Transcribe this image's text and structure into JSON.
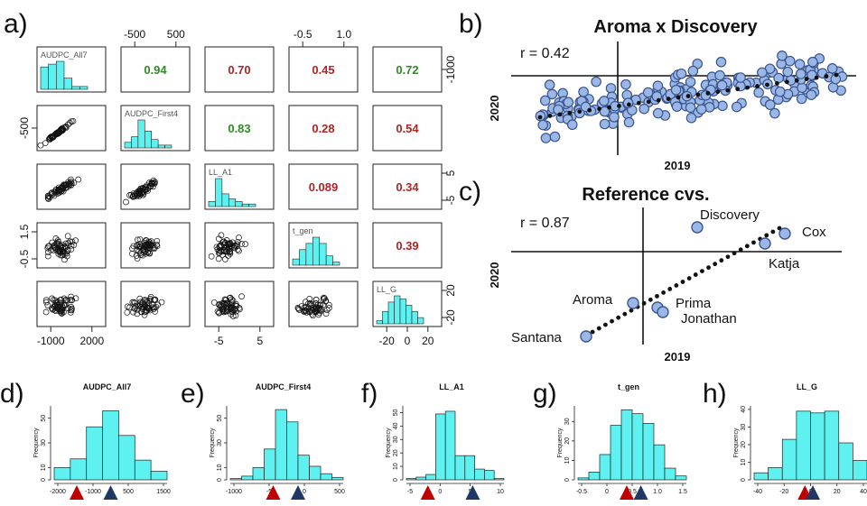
{
  "colors": {
    "hist_fill": "#5ff0f0",
    "green": "#2e8b22",
    "red": "#b22222",
    "point_fill": "#9ab7e6",
    "point_stroke": "#3a5590",
    "tri_red": "#c00000",
    "tri_blue": "#1f3864"
  },
  "panel_labels": {
    "a": "a)",
    "b": "b)",
    "c": "c)",
    "d": "d)",
    "e": "e)",
    "f": "f)",
    "g": "g)",
    "h": "h)"
  },
  "chart_data": [
    {
      "type": "scatter",
      "id": "a",
      "variables": [
        "AUDPC_All7",
        "AUDPC_First4",
        "LL_A1",
        "t_gen",
        "LL_G"
      ],
      "correlations": [
        {
          "row": 0,
          "col": 1,
          "value": "0.94",
          "color": "green"
        },
        {
          "row": 0,
          "col": 2,
          "value": "0.70",
          "color": "red"
        },
        {
          "row": 0,
          "col": 3,
          "value": "0.45",
          "color": "red"
        },
        {
          "row": 0,
          "col": 4,
          "value": "0.72",
          "color": "green"
        },
        {
          "row": 1,
          "col": 2,
          "value": "0.83",
          "color": "green"
        },
        {
          "row": 1,
          "col": 3,
          "value": "0.28",
          "color": "red"
        },
        {
          "row": 1,
          "col": 4,
          "value": "0.54",
          "color": "red"
        },
        {
          "row": 2,
          "col": 3,
          "value": "0.089",
          "color": "red"
        },
        {
          "row": 2,
          "col": 4,
          "value": "0.34",
          "color": "red"
        },
        {
          "row": 3,
          "col": 4,
          "value": "0.39",
          "color": "red"
        }
      ],
      "top_ticks": [
        {
          "col": 1,
          "labels": [
            "-500",
            "500"
          ]
        },
        {
          "col": 3,
          "labels": [
            "-0.5",
            "1.0"
          ]
        }
      ],
      "bottom_ticks": [
        {
          "col": 0,
          "labels": [
            "-1000",
            "2000"
          ]
        },
        {
          "col": 2,
          "labels": [
            "-5",
            "5"
          ]
        },
        {
          "col": 4,
          "labels": [
            "-20",
            "0",
            "20"
          ]
        }
      ],
      "left_ticks": [
        {
          "row": 1,
          "labels": [
            "-500"
          ]
        },
        {
          "row": 3,
          "labels": [
            "1.5",
            "-0.5"
          ]
        }
      ],
      "right_ticks": [
        {
          "row": 0,
          "labels": [
            "-1000"
          ]
        },
        {
          "row": 2,
          "labels": [
            "5",
            "-5"
          ]
        },
        {
          "row": 4,
          "labels": [
            "20",
            "-20"
          ]
        }
      ],
      "diag_hists": [
        [
          8,
          9,
          10,
          4,
          1,
          1
        ],
        [
          2,
          4,
          10,
          6,
          3,
          1,
          1
        ],
        [
          2,
          11,
          5,
          3,
          2,
          1,
          1
        ],
        [
          2,
          5,
          7,
          9,
          7,
          3,
          1
        ],
        [
          1,
          4,
          7,
          9,
          8,
          6,
          4,
          2
        ]
      ]
    },
    {
      "type": "scatter",
      "id": "b",
      "title": "Aroma x Discovery",
      "xlabel": "2019",
      "ylabel": "2020",
      "annotation": "r = 0.42"
    },
    {
      "type": "scatter",
      "id": "c",
      "title": "Reference cvs.",
      "xlabel": "2019",
      "ylabel": "2020",
      "annotation": "r = 0.87",
      "cultivars": [
        {
          "name": "Discovery"
        },
        {
          "name": "Cox"
        },
        {
          "name": "Katja"
        },
        {
          "name": "Aroma"
        },
        {
          "name": "Prima"
        },
        {
          "name": "Jonathan"
        },
        {
          "name": "Santana"
        }
      ]
    },
    {
      "type": "bar",
      "id": "d",
      "title": "AUDPC_All7",
      "ylabel": "Frequency",
      "yticks": [
        "0",
        "10",
        "30",
        "50"
      ],
      "ymax": 60,
      "xticks": [
        "-2000",
        "-1000",
        "500",
        "1500"
      ],
      "values": [
        10,
        17,
        43,
        56,
        36,
        16,
        7
      ],
      "red_fraction": 0.2,
      "blue_fraction": 0.5
    },
    {
      "type": "bar",
      "id": "e",
      "title": "AUDPC_First4",
      "ylabel": "Frequency",
      "yticks": [
        "0",
        "10",
        "30",
        "50"
      ],
      "ymax": 60,
      "xticks": [
        "-1000",
        "-5",
        "0",
        "500"
      ],
      "values": [
        1,
        3,
        10,
        25,
        57,
        47,
        20,
        11,
        5,
        2
      ],
      "red_fraction": 0.38,
      "blue_fraction": 0.6
    },
    {
      "type": "bar",
      "id": "f",
      "title": "LL_A1",
      "ylabel": "Frequency",
      "yticks": [
        "0",
        "10",
        "20",
        "30",
        "40",
        "50"
      ],
      "ymax": 55,
      "xticks": [
        "-5",
        "0",
        "5",
        "10"
      ],
      "values": [
        1,
        2,
        4,
        49,
        51,
        18,
        18,
        8,
        7,
        1
      ],
      "red_fraction": 0.22,
      "blue_fraction": 0.68
    },
    {
      "type": "bar",
      "id": "g",
      "title": "t_gen",
      "ylabel": "Frequency",
      "yticks": [
        "0",
        "10",
        "20",
        "30"
      ],
      "ymax": 38,
      "xticks": [
        "-0.5",
        "0",
        "0.5",
        "1.0",
        "1.5"
      ],
      "values": [
        1,
        4,
        13,
        28,
        36,
        34,
        29,
        18,
        6,
        2
      ],
      "red_fraction": 0.45,
      "blue_fraction": 0.58
    },
    {
      "type": "bar",
      "id": "h",
      "title": "LL_G",
      "ylabel": "Frequency",
      "yticks": [
        "0",
        "10",
        "20",
        "30",
        "40"
      ],
      "ymax": 42,
      "xticks": [
        "-40",
        "-20",
        "0",
        "20",
        "40"
      ],
      "values": [
        4,
        7,
        23,
        39,
        38,
        39,
        21,
        11
      ],
      "red_fraction": 0.45,
      "blue_fraction": 0.52
    }
  ]
}
